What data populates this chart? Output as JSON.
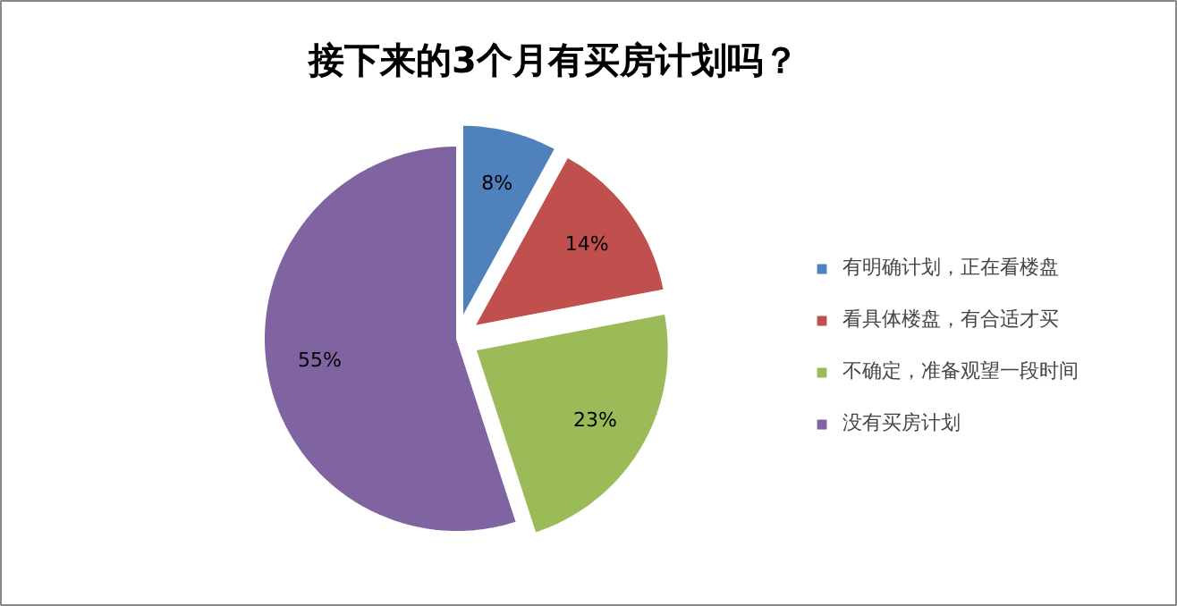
{
  "chart_data": {
    "type": "pie",
    "title": "接下来的3个月有买房计划吗？",
    "categories": [
      "有明确计划，正在看楼盘",
      "看具体楼盘，有合适才买",
      "不确定，准备观望一段时间",
      "没有买房计划"
    ],
    "values": [
      8,
      14,
      23,
      55
    ],
    "colors": [
      "#4f81bd",
      "#c0504d",
      "#9bbb59",
      "#8064a2"
    ],
    "value_labels": [
      "8%",
      "14%",
      "23%",
      "55%"
    ],
    "legend": "right"
  }
}
